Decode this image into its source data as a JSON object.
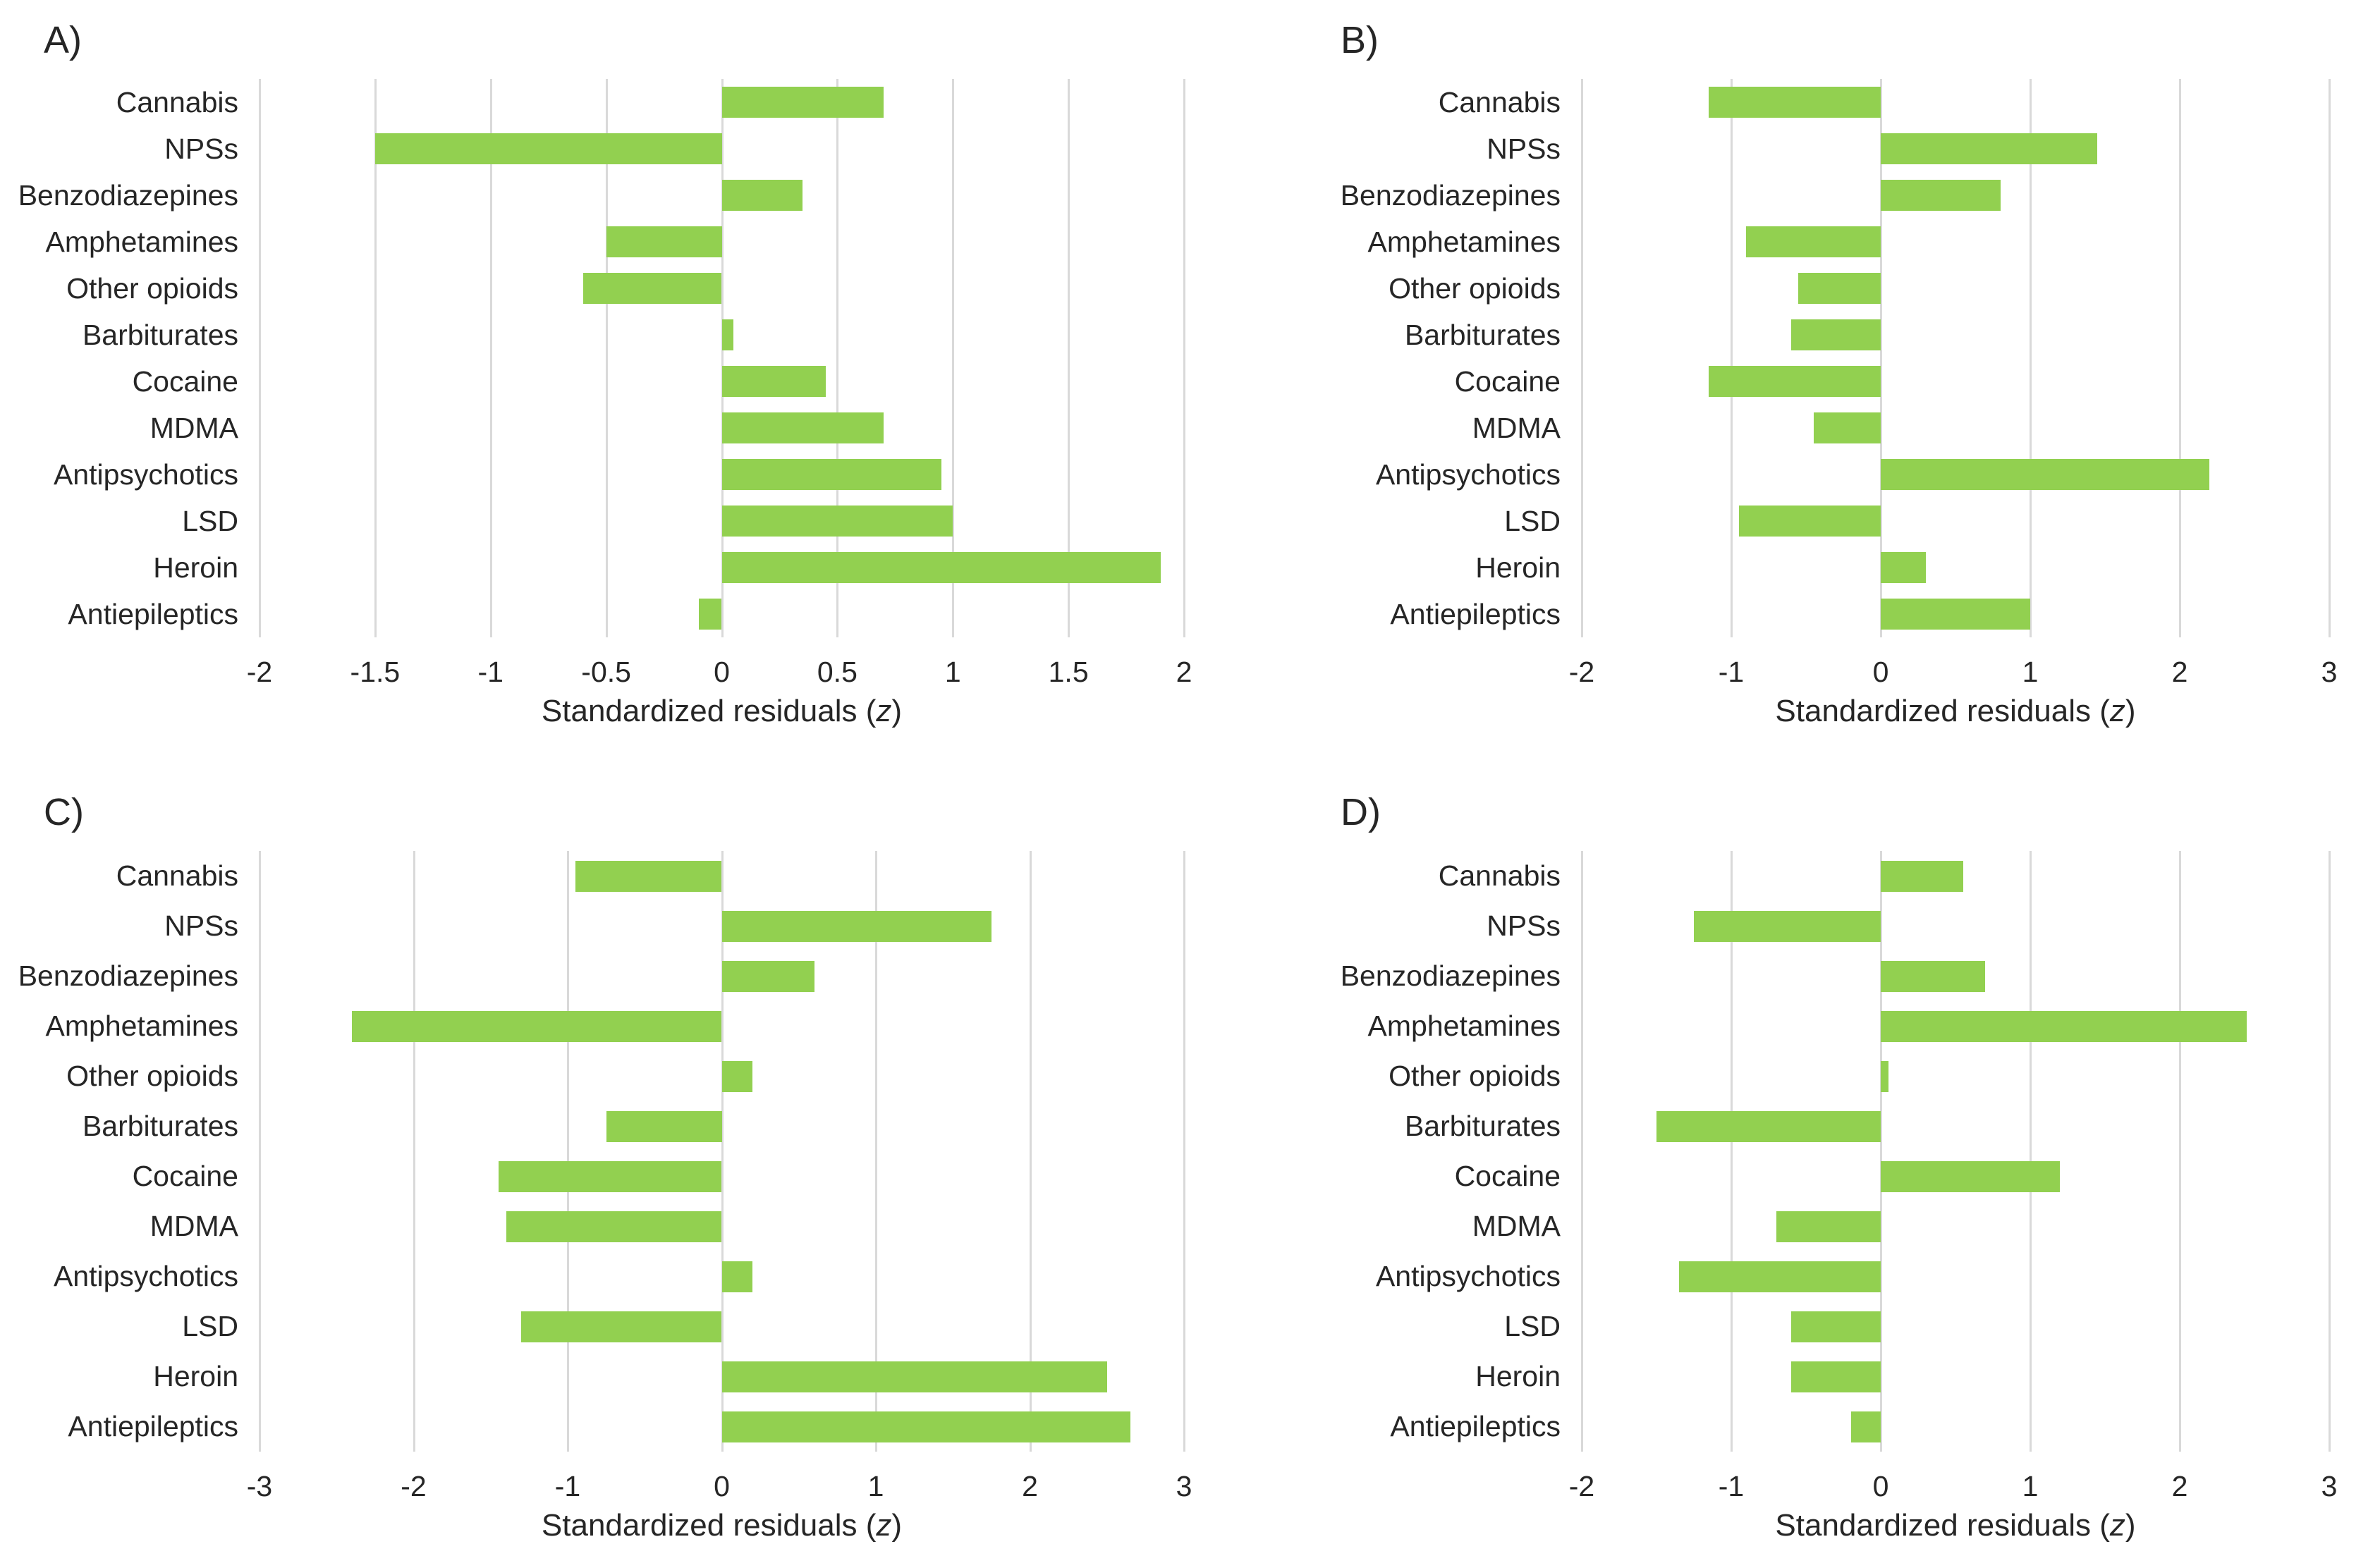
{
  "styles": {
    "bar_color": "#92d050",
    "gridline_color": "#d9d9d9",
    "text_color": "#262626",
    "background": "#ffffff"
  },
  "chart_data": [
    {
      "panel_label": "A)",
      "type": "bar",
      "orientation": "horizontal",
      "categories": [
        "Cannabis",
        "NPSs",
        "Benzodiazepines",
        "Amphetamines",
        "Other opioids",
        "Barbiturates",
        "Cocaine",
        "MDMA",
        "Antipsychotics",
        "LSD",
        "Heroin",
        "Antiepileptics"
      ],
      "values": [
        0.7,
        -1.5,
        0.35,
        -0.5,
        -0.6,
        0.05,
        0.45,
        0.7,
        0.95,
        1.0,
        1.9,
        -0.1
      ],
      "xlabel": "Standardized residuals (z)",
      "xlabel_prefix": "Standardized residuals (",
      "xlabel_var": "z",
      "xlabel_suffix": ")",
      "xlim": [
        -2,
        2
      ],
      "ticks": [
        -2,
        -1.5,
        -1,
        -0.5,
        0,
        0.5,
        1,
        1.5,
        2
      ],
      "tick_labels": [
        "-2",
        "-1.5",
        "-1",
        "-0.5",
        "0",
        "0.5",
        "1",
        "1.5",
        "2"
      ],
      "grid": true,
      "legend": "none",
      "bar_color": "#92d050"
    },
    {
      "panel_label": "B)",
      "type": "bar",
      "orientation": "horizontal",
      "categories": [
        "Cannabis",
        "NPSs",
        "Benzodiazepines",
        "Amphetamines",
        "Other opioids",
        "Barbiturates",
        "Cocaine",
        "MDMA",
        "Antipsychotics",
        "LSD",
        "Heroin",
        "Antiepileptics"
      ],
      "values": [
        -1.15,
        1.45,
        0.8,
        -0.9,
        -0.55,
        -0.6,
        -1.15,
        -0.45,
        2.2,
        -0.95,
        0.3,
        1.0
      ],
      "xlabel": "Standardized residuals (z)",
      "xlabel_prefix": "Standardized residuals (",
      "xlabel_var": "z",
      "xlabel_suffix": ")",
      "xlim": [
        -2,
        3
      ],
      "ticks": [
        -2,
        -1,
        0,
        1,
        2,
        3
      ],
      "tick_labels": [
        "-2",
        "-1",
        "0",
        "1",
        "2",
        "3"
      ],
      "grid": true,
      "legend": "none",
      "bar_color": "#92d050"
    },
    {
      "panel_label": "C)",
      "type": "bar",
      "orientation": "horizontal",
      "categories": [
        "Cannabis",
        "NPSs",
        "Benzodiazepines",
        "Amphetamines",
        "Other opioids",
        "Barbiturates",
        "Cocaine",
        "MDMA",
        "Antipsychotics",
        "LSD",
        "Heroin",
        "Antiepileptics"
      ],
      "values": [
        -0.95,
        1.75,
        0.6,
        -2.4,
        0.2,
        -0.75,
        -1.45,
        -1.4,
        0.2,
        -1.3,
        2.5,
        2.65
      ],
      "xlabel": "Standardized residuals (z)",
      "xlabel_prefix": "Standardized residuals (",
      "xlabel_var": "z",
      "xlabel_suffix": ")",
      "xlim": [
        -3,
        3
      ],
      "ticks": [
        -3,
        -2,
        -1,
        0,
        1,
        2,
        3
      ],
      "tick_labels": [
        "-3",
        "-2",
        "-1",
        "0",
        "1",
        "2",
        "3"
      ],
      "grid": true,
      "legend": "none",
      "bar_color": "#92d050"
    },
    {
      "panel_label": "D)",
      "type": "bar",
      "orientation": "horizontal",
      "categories": [
        "Cannabis",
        "NPSs",
        "Benzodiazepines",
        "Amphetamines",
        "Other opioids",
        "Barbiturates",
        "Cocaine",
        "MDMA",
        "Antipsychotics",
        "LSD",
        "Heroin",
        "Antiepileptics"
      ],
      "values": [
        0.55,
        -1.25,
        0.7,
        2.45,
        0.05,
        -1.5,
        1.2,
        -0.7,
        -1.35,
        -0.6,
        -0.6,
        -0.2
      ],
      "xlabel": "Standardized residuals (z)",
      "xlabel_prefix": "Standardized residuals (",
      "xlabel_var": "z",
      "xlabel_suffix": ")",
      "xlim": [
        -2,
        3
      ],
      "ticks": [
        -2,
        -1,
        0,
        1,
        2,
        3
      ],
      "tick_labels": [
        "-2",
        "-1",
        "0",
        "1",
        "2",
        "3"
      ],
      "grid": true,
      "legend": "none",
      "bar_color": "#92d050"
    }
  ]
}
